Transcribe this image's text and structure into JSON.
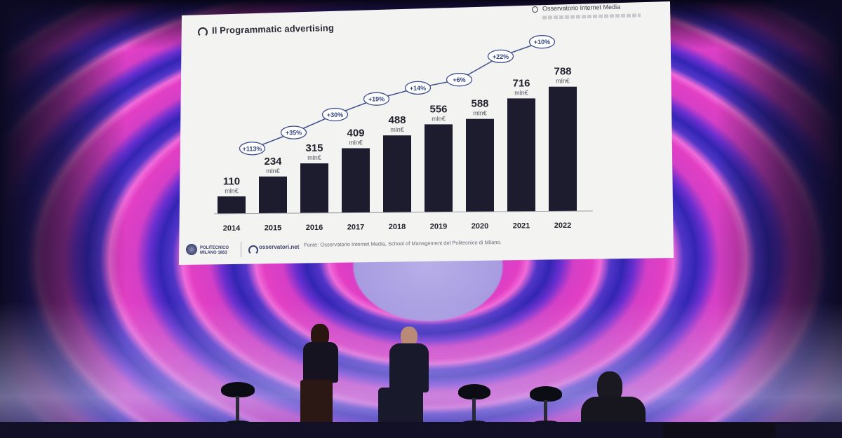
{
  "slide": {
    "title": "Il Programmatic advertising",
    "source_logo": "Osservatorio Internet Media",
    "footer_note": "Fonte: Osservatorio Internet Media, School of Management del Politecnico di Milano.",
    "logo_politecnico": "POLITECNICO",
    "logo_politecnico_sub": "MILANO 1863",
    "logo_osservatori": "osservatori.net"
  },
  "colors": {
    "bar": "#1d1c2e",
    "bubble_stroke": "#3f4f8c",
    "bubble_text": "#33457e",
    "slide_bg": "#f3f3f1"
  },
  "chart_data": {
    "type": "bar",
    "categories": [
      "2014",
      "2015",
      "2016",
      "2017",
      "2018",
      "2019",
      "2020",
      "2021",
      "2022"
    ],
    "values": [
      110,
      234,
      315,
      409,
      488,
      556,
      588,
      716,
      788
    ],
    "value_unit": "mln€",
    "growth_labels": [
      "+113%",
      "+35%",
      "+30%",
      "+19%",
      "+14%",
      "+6%",
      "+22%",
      "+10%"
    ],
    "ylim": [
      0,
      800
    ],
    "grid": false,
    "legend": "none"
  }
}
